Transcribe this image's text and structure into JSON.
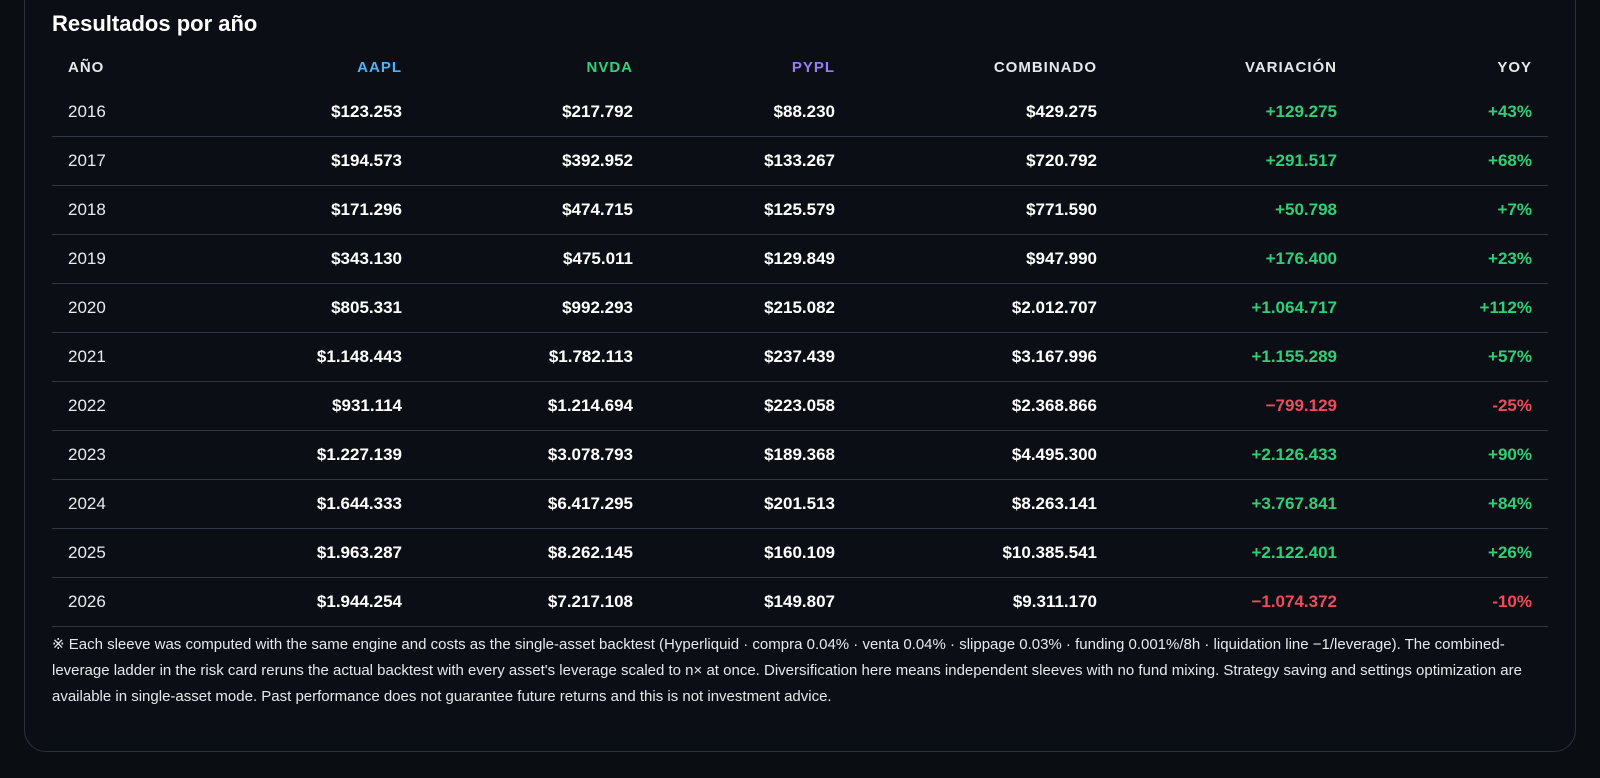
{
  "section": {
    "title": "Resultados por año"
  },
  "table": {
    "headers": [
      {
        "label": "AÑO",
        "color": "#e6e8eb"
      },
      {
        "label": "AAPL",
        "color": "#4fb3f6"
      },
      {
        "label": "NVDA",
        "color": "#34d17c"
      },
      {
        "label": "PYPL",
        "color": "#9b7cf6"
      },
      {
        "label": "COMBINADO",
        "color": "#e6e8eb"
      },
      {
        "label": "VARIACIÓN",
        "color": "#e6e8eb"
      },
      {
        "label": "YOY",
        "color": "#e6e8eb"
      }
    ],
    "rows": [
      {
        "year": "2016",
        "aapl": "$123.253",
        "nvda": "$217.792",
        "pypl": "$88.230",
        "combined": "$429.275",
        "change": "+129.275",
        "yoy": "+43%",
        "trend": "pos"
      },
      {
        "year": "2017",
        "aapl": "$194.573",
        "nvda": "$392.952",
        "pypl": "$133.267",
        "combined": "$720.792",
        "change": "+291.517",
        "yoy": "+68%",
        "trend": "pos"
      },
      {
        "year": "2018",
        "aapl": "$171.296",
        "nvda": "$474.715",
        "pypl": "$125.579",
        "combined": "$771.590",
        "change": "+50.798",
        "yoy": "+7%",
        "trend": "pos"
      },
      {
        "year": "2019",
        "aapl": "$343.130",
        "nvda": "$475.011",
        "pypl": "$129.849",
        "combined": "$947.990",
        "change": "+176.400",
        "yoy": "+23%",
        "trend": "pos"
      },
      {
        "year": "2020",
        "aapl": "$805.331",
        "nvda": "$992.293",
        "pypl": "$215.082",
        "combined": "$2.012.707",
        "change": "+1.064.717",
        "yoy": "+112%",
        "trend": "pos"
      },
      {
        "year": "2021",
        "aapl": "$1.148.443",
        "nvda": "$1.782.113",
        "pypl": "$237.439",
        "combined": "$3.167.996",
        "change": "+1.155.289",
        "yoy": "+57%",
        "trend": "pos"
      },
      {
        "year": "2022",
        "aapl": "$931.114",
        "nvda": "$1.214.694",
        "pypl": "$223.058",
        "combined": "$2.368.866",
        "change": "−799.129",
        "yoy": "-25%",
        "trend": "neg"
      },
      {
        "year": "2023",
        "aapl": "$1.227.139",
        "nvda": "$3.078.793",
        "pypl": "$189.368",
        "combined": "$4.495.300",
        "change": "+2.126.433",
        "yoy": "+90%",
        "trend": "pos"
      },
      {
        "year": "2024",
        "aapl": "$1.644.333",
        "nvda": "$6.417.295",
        "pypl": "$201.513",
        "combined": "$8.263.141",
        "change": "+3.767.841",
        "yoy": "+84%",
        "trend": "pos"
      },
      {
        "year": "2025",
        "aapl": "$1.963.287",
        "nvda": "$8.262.145",
        "pypl": "$160.109",
        "combined": "$10.385.541",
        "change": "+2.122.401",
        "yoy": "+26%",
        "trend": "pos"
      },
      {
        "year": "2026",
        "aapl": "$1.944.254",
        "nvda": "$7.217.108",
        "pypl": "$149.807",
        "combined": "$9.311.170",
        "change": "−1.074.372",
        "yoy": "-10%",
        "trend": "neg"
      }
    ]
  },
  "colors": {
    "positive": "#2fcf77",
    "negative": "#ef4b5d"
  },
  "footnote": {
    "text": "※ Each sleeve was computed with the same engine and costs as the single-asset backtest (Hyperliquid · compra 0.04% · venta 0.04% · slippage 0.03% · funding 0.001%/8h · liquidation line −1/leverage). The combined-leverage ladder in the risk card reruns the actual backtest with every asset's leverage scaled to n× at once. Diversification here means independent sleeves with no fund mixing. Strategy saving and settings optimization are available in single-asset mode. Past performance does not guarantee future returns and this is not investment advice."
  }
}
